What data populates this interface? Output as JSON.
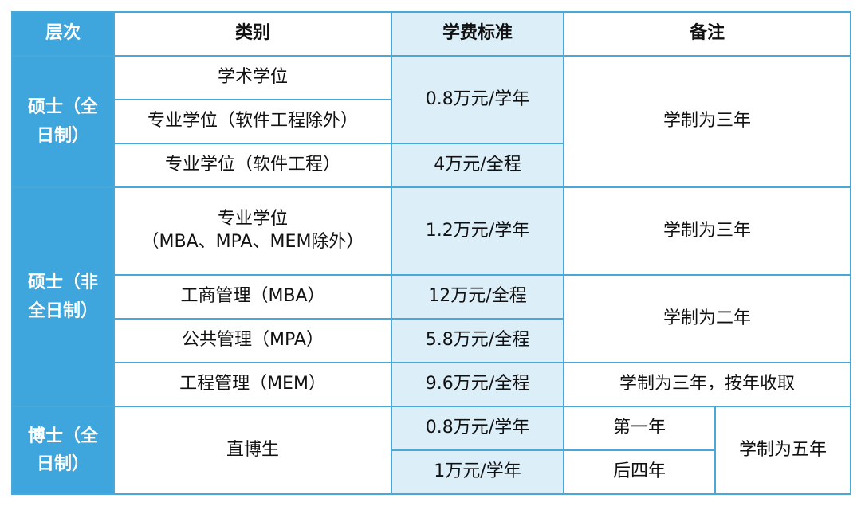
{
  "header": {
    "level": "层次",
    "category": "类别",
    "fee": "学费标准",
    "note": "备注"
  },
  "groups": [
    {
      "level": "硕士（全日制）",
      "rows": [
        {
          "category": "学术学位",
          "fee": "0.8万元/学年",
          "note": "学制为三年"
        },
        {
          "category": "专业学位（软件工程除外）"
        },
        {
          "category": "专业学位（软件工程）",
          "fee": "4万元/全程"
        }
      ]
    },
    {
      "level": "硕士（非全日制）",
      "rows": [
        {
          "category_line1": "专业学位",
          "category_line2": "（MBA、MPA、MEM除外）",
          "fee": "1.2万元/学年",
          "note": "学制为三年"
        },
        {
          "category": "工商管理（MBA）",
          "fee": "12万元/全程",
          "note": "学制为二年"
        },
        {
          "category": "公共管理（MPA）",
          "fee": "5.8万元/全程"
        },
        {
          "category": "工程管理（MEM）",
          "fee": "9.6万元/全程",
          "note": "学制为三年，按年收取"
        }
      ]
    },
    {
      "level": "博士（全日制）",
      "category": "直博生",
      "rows": [
        {
          "fee": "0.8万元/学年",
          "note_sub": "第一年",
          "note": "学制为五年"
        },
        {
          "fee": "1万元/学年",
          "note_sub": "后四年"
        }
      ]
    }
  ]
}
